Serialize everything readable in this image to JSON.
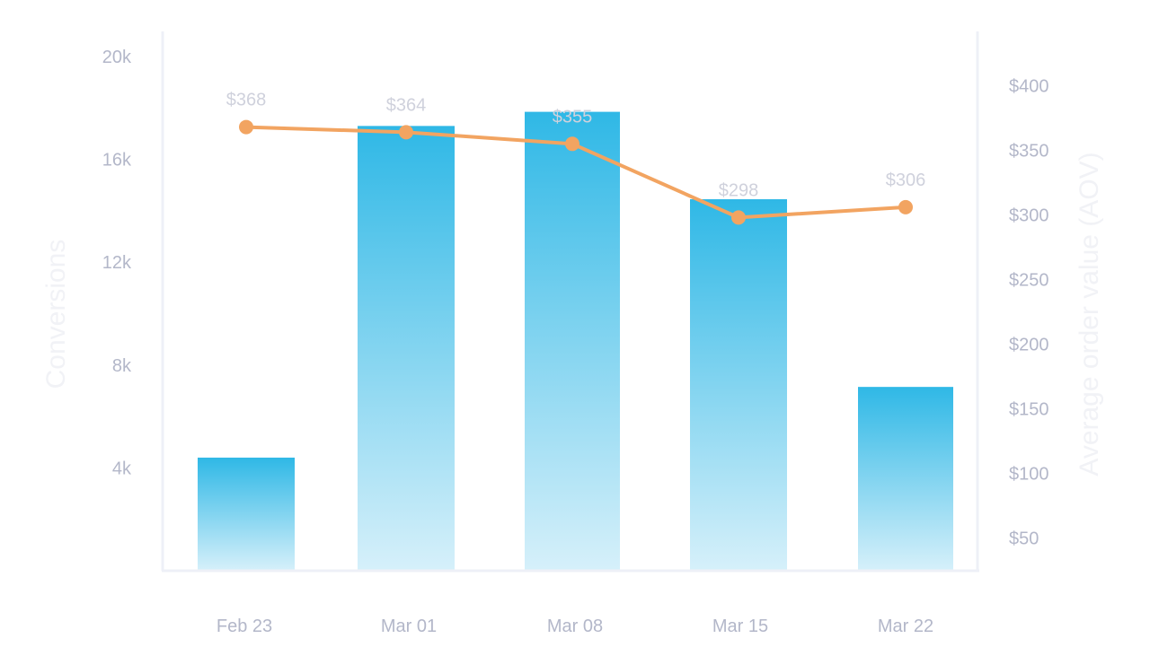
{
  "chart_data": {
    "type": "bar",
    "categories": [
      "Feb 23",
      "Mar 01",
      "Mar 08",
      "Mar 15",
      "Mar 22"
    ],
    "series": [
      {
        "name": "Conversions",
        "type": "bar",
        "axis": "left",
        "values": [
          4400,
          17300,
          17850,
          14450,
          7150
        ]
      },
      {
        "name": "Average order value (AOV)",
        "type": "line",
        "axis": "right",
        "values": [
          368,
          364,
          355,
          298,
          306
        ],
        "data_labels": [
          "$368",
          "$364",
          "$355",
          "$298",
          "$306"
        ]
      }
    ],
    "y_left": {
      "label": "Conversions",
      "ticks": [
        "20k",
        "16k",
        "12k",
        "8k",
        "4k"
      ],
      "tick_values": [
        20000,
        16000,
        12000,
        8000,
        4000
      ],
      "range": [
        0,
        20000
      ]
    },
    "y_right": {
      "label": "Average order value (AOV)",
      "ticks": [
        "$400",
        "$350",
        "$300",
        "$250",
        "$200",
        "$150",
        "$100",
        "$50"
      ],
      "tick_values": [
        400,
        350,
        300,
        250,
        200,
        150,
        100,
        50
      ],
      "range": [
        25,
        400
      ]
    },
    "grid": false,
    "colors": {
      "bar_top": "#2fb8e6",
      "bar_bottom": "#d6f0fa",
      "line": "#f2a461",
      "axis": "#eef0f7",
      "tick_text": "#b3b7c9",
      "label_text": "#cfd1dc",
      "axis_title": "#f1f2f6"
    }
  }
}
